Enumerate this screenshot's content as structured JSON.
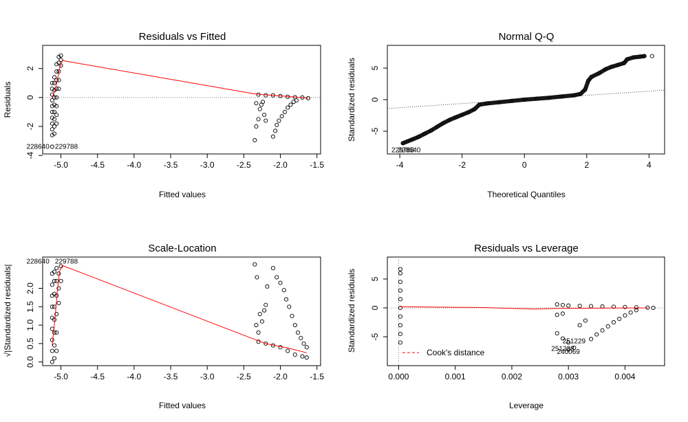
{
  "chart_data": [
    {
      "id": "rvf",
      "type": "scatter",
      "title": "Residuals vs Fitted",
      "xlabel": "Fitted values",
      "ylabel": "Residuals",
      "xlim": [
        -5.25,
        -1.45
      ],
      "ylim": [
        -3.9,
        3.6
      ],
      "xticks": [
        -5.0,
        -4.5,
        -4.0,
        -3.5,
        -3.0,
        -2.5,
        -2.0,
        -1.5
      ],
      "xtick_labels": [
        "-5.0",
        "-4.5",
        "-4.0",
        "-3.5",
        "-3.0",
        "-2.5",
        "-2.0",
        "-1.5"
      ],
      "yticks": [
        -4,
        -2,
        0,
        2
      ],
      "ytick_labels": [
        "-4",
        "-2",
        "0",
        "2"
      ],
      "hline": 0,
      "points": [
        [
          -5.12,
          -3.4
        ],
        [
          -5.12,
          -2.6
        ],
        [
          -5.12,
          -2.2
        ],
        [
          -5.12,
          -1.8
        ],
        [
          -5.12,
          -1.4
        ],
        [
          -5.12,
          -1.0
        ],
        [
          -5.12,
          -0.6
        ],
        [
          -5.12,
          -0.2
        ],
        [
          -5.12,
          0.2
        ],
        [
          -5.12,
          0.6
        ],
        [
          -5.12,
          1.0
        ],
        [
          -5.09,
          -2.5
        ],
        [
          -5.09,
          -2.0
        ],
        [
          -5.09,
          -1.5
        ],
        [
          -5.09,
          -1.0
        ],
        [
          -5.09,
          -0.5
        ],
        [
          -5.09,
          0.0
        ],
        [
          -5.09,
          0.5
        ],
        [
          -5.09,
          1.0
        ],
        [
          -5.09,
          1.4
        ],
        [
          -5.06,
          -1.8
        ],
        [
          -5.06,
          -1.2
        ],
        [
          -5.06,
          -0.6
        ],
        [
          -5.06,
          0.0
        ],
        [
          -5.06,
          0.6
        ],
        [
          -5.06,
          1.2
        ],
        [
          -5.06,
          1.8
        ],
        [
          -5.06,
          2.3
        ],
        [
          -5.03,
          0.6
        ],
        [
          -5.03,
          1.2
        ],
        [
          -5.03,
          1.8
        ],
        [
          -5.03,
          2.4
        ],
        [
          -5.03,
          2.8
        ],
        [
          -5.0,
          2.2
        ],
        [
          -5.0,
          2.6
        ],
        [
          -5.0,
          2.9
        ],
        [
          -2.35,
          -2.95
        ],
        [
          -2.33,
          -2.0
        ],
        [
          -2.33,
          -0.4
        ],
        [
          -2.3,
          -1.5
        ],
        [
          -2.28,
          -0.8
        ],
        [
          -2.26,
          -0.5
        ],
        [
          -2.24,
          -0.3
        ],
        [
          -2.22,
          -1.2
        ],
        [
          -2.2,
          -1.6
        ],
        [
          -2.3,
          0.2
        ],
        [
          -2.2,
          0.15
        ],
        [
          -2.1,
          -2.7
        ],
        [
          -2.07,
          -2.3
        ],
        [
          -2.05,
          -1.9
        ],
        [
          -2.02,
          -1.6
        ],
        [
          -1.98,
          -1.3
        ],
        [
          -1.94,
          -1.0
        ],
        [
          -1.9,
          -0.7
        ],
        [
          -1.86,
          -0.5
        ],
        [
          -1.82,
          -0.3
        ],
        [
          -1.78,
          -0.2
        ],
        [
          -2.1,
          0.15
        ],
        [
          -2.0,
          0.1
        ],
        [
          -1.9,
          0.05
        ],
        [
          -1.8,
          0.02
        ],
        [
          -1.7,
          0.0
        ],
        [
          -1.62,
          -0.05
        ]
      ],
      "smooth": [
        [
          -5.12,
          0.0
        ],
        [
          -5.08,
          0.5
        ],
        [
          -5.05,
          1.2
        ],
        [
          -5.02,
          2.0
        ],
        [
          -4.98,
          2.55
        ],
        [
          -2.35,
          0.25
        ],
        [
          -2.1,
          0.15
        ],
        [
          -1.9,
          0.08
        ],
        [
          -1.62,
          -0.05
        ]
      ],
      "annotations": [
        {
          "text": "228640",
          "x": -5.12,
          "y": -3.4,
          "pos": "left"
        },
        {
          "text": "229788",
          "x": -5.12,
          "y": -3.4,
          "pos": "right"
        }
      ]
    },
    {
      "id": "qq",
      "type": "scatter",
      "title": "Normal Q-Q",
      "xlabel": "Theoretical Quantiles",
      "ylabel": "Standardized residuals",
      "xlim": [
        -4.4,
        4.5
      ],
      "ylim": [
        -8.6,
        8.6
      ],
      "xticks": [
        -4,
        -2,
        0,
        2,
        4
      ],
      "xtick_labels": [
        "-4",
        "-2",
        "0",
        "2",
        "4"
      ],
      "yticks": [
        -5,
        0,
        5
      ],
      "ytick_labels": [
        "-5",
        "0",
        "5"
      ],
      "refline": [
        [
          -4.4,
          -1.4
        ],
        [
          4.5,
          1.5
        ]
      ],
      "curve_points": [
        [
          -3.9,
          -6.9
        ],
        [
          -3.75,
          -6.6
        ],
        [
          -3.6,
          -6.3
        ],
        [
          -3.4,
          -5.9
        ],
        [
          -3.2,
          -5.4
        ],
        [
          -3.0,
          -4.9
        ],
        [
          -2.8,
          -4.3
        ],
        [
          -2.6,
          -3.7
        ],
        [
          -2.4,
          -3.2
        ],
        [
          -2.2,
          -2.8
        ],
        [
          -2.0,
          -2.4
        ],
        [
          -1.8,
          -2.0
        ],
        [
          -1.6,
          -1.5
        ],
        [
          -1.45,
          -0.8
        ],
        [
          -1.2,
          -0.6
        ],
        [
          -0.8,
          -0.4
        ],
        [
          -0.4,
          -0.2
        ],
        [
          0.0,
          0.0
        ],
        [
          0.4,
          0.15
        ],
        [
          0.8,
          0.3
        ],
        [
          1.2,
          0.5
        ],
        [
          1.6,
          0.7
        ],
        [
          1.8,
          0.9
        ],
        [
          1.95,
          1.6
        ],
        [
          2.05,
          3.0
        ],
        [
          2.15,
          3.6
        ],
        [
          2.4,
          4.2
        ],
        [
          2.6,
          4.8
        ],
        [
          2.8,
          5.2
        ],
        [
          3.0,
          5.5
        ],
        [
          3.2,
          5.8
        ],
        [
          3.3,
          6.4
        ],
        [
          3.5,
          6.7
        ],
        [
          3.7,
          6.8
        ],
        [
          3.85,
          6.9
        ]
      ],
      "extra_points": [
        [
          4.1,
          6.9
        ]
      ],
      "annotations": [
        {
          "text": "229788",
          "x": -3.9,
          "y": -8.0
        },
        {
          "text": "228640",
          "x": -3.7,
          "y": -8.0
        }
      ]
    },
    {
      "id": "sl",
      "type": "scatter",
      "title": "Scale-Location",
      "xlabel": "Fitted values",
      "ylabel": "√|Standardized residuals|",
      "xlim": [
        -5.25,
        -1.45
      ],
      "ylim": [
        -0.1,
        2.85
      ],
      "xticks": [
        -5.0,
        -4.5,
        -4.0,
        -3.5,
        -3.0,
        -2.5,
        -2.0,
        -1.5
      ],
      "xtick_labels": [
        "-5.0",
        "-4.5",
        "-4.0",
        "-3.5",
        "-3.0",
        "-2.5",
        "-2.0",
        "-1.5"
      ],
      "yticks": [
        0.0,
        0.5,
        1.0,
        1.5,
        2.0
      ],
      "ytick_labels": [
        "0.0",
        "0.5",
        "1.0",
        "1.5",
        "2.0"
      ],
      "points": [
        [
          -5.12,
          0.0
        ],
        [
          -5.12,
          0.3
        ],
        [
          -5.12,
          0.6
        ],
        [
          -5.12,
          0.9
        ],
        [
          -5.12,
          1.2
        ],
        [
          -5.12,
          1.5
        ],
        [
          -5.12,
          1.8
        ],
        [
          -5.12,
          2.1
        ],
        [
          -5.12,
          2.4
        ],
        [
          -5.09,
          0.1
        ],
        [
          -5.09,
          0.45
        ],
        [
          -5.09,
          0.8
        ],
        [
          -5.09,
          1.15
        ],
        [
          -5.09,
          1.5
        ],
        [
          -5.09,
          1.85
        ],
        [
          -5.09,
          2.2
        ],
        [
          -5.09,
          2.45
        ],
        [
          -5.06,
          0.3
        ],
        [
          -5.06,
          0.8
        ],
        [
          -5.06,
          1.3
        ],
        [
          -5.06,
          1.8
        ],
        [
          -5.06,
          2.2
        ],
        [
          -5.06,
          2.55
        ],
        [
          -5.03,
          1.6
        ],
        [
          -5.03,
          2.0
        ],
        [
          -5.03,
          2.4
        ],
        [
          -5.0,
          2.2
        ],
        [
          -5.0,
          2.6
        ],
        [
          -2.35,
          2.65
        ],
        [
          -2.32,
          2.3
        ],
        [
          -2.33,
          1.0
        ],
        [
          -2.3,
          0.8
        ],
        [
          -2.28,
          1.3
        ],
        [
          -2.25,
          1.1
        ],
        [
          -2.22,
          1.4
        ],
        [
          -2.2,
          1.55
        ],
        [
          -2.18,
          2.05
        ],
        [
          -2.1,
          2.55
        ],
        [
          -2.05,
          2.3
        ],
        [
          -2.0,
          2.15
        ],
        [
          -1.95,
          1.95
        ],
        [
          -1.92,
          1.7
        ],
        [
          -1.88,
          1.5
        ],
        [
          -1.84,
          1.25
        ],
        [
          -1.8,
          1.0
        ],
        [
          -1.76,
          0.8
        ],
        [
          -1.72,
          0.65
        ],
        [
          -1.68,
          0.5
        ],
        [
          -1.64,
          0.4
        ],
        [
          -2.3,
          0.55
        ],
        [
          -2.2,
          0.5
        ],
        [
          -2.1,
          0.45
        ],
        [
          -2.0,
          0.4
        ],
        [
          -1.9,
          0.3
        ],
        [
          -1.8,
          0.2
        ],
        [
          -1.7,
          0.15
        ],
        [
          -1.64,
          0.12
        ]
      ],
      "smooth": [
        [
          -5.12,
          0.45
        ],
        [
          -5.09,
          1.0
        ],
        [
          -5.05,
          1.9
        ],
        [
          -5.02,
          2.45
        ],
        [
          -4.98,
          2.62
        ],
        [
          -2.4,
          0.65
        ],
        [
          -2.2,
          0.5
        ],
        [
          -1.9,
          0.38
        ],
        [
          -1.64,
          0.25
        ]
      ],
      "annotations": [
        {
          "text": "228640",
          "x": -5.12,
          "y": 2.73,
          "pos": "left"
        },
        {
          "text": "229788",
          "x": -5.12,
          "y": 2.73,
          "pos": "right"
        }
      ]
    },
    {
      "id": "rvl",
      "type": "scatter",
      "title": "Residuals vs Leverage",
      "xlabel": "Leverage",
      "ylabel": "Standardized residuals",
      "xlim": [
        -0.0002,
        0.0047
      ],
      "ylim": [
        -10,
        8.8
      ],
      "xticks": [
        0.0,
        0.001,
        0.002,
        0.003,
        0.004
      ],
      "xtick_labels": [
        "0.000",
        "0.001",
        "0.002",
        "0.003",
        "0.004"
      ],
      "yticks": [
        -5,
        0,
        5
      ],
      "ytick_labels": [
        "-5",
        "0",
        "5"
      ],
      "hline": 0,
      "vline": 0,
      "points": [
        [
          3e-05,
          -6.0
        ],
        [
          3e-05,
          -4.5
        ],
        [
          3e-05,
          -3.0
        ],
        [
          3e-05,
          -1.5
        ],
        [
          3e-05,
          0.0
        ],
        [
          3e-05,
          1.5
        ],
        [
          3e-05,
          3.0
        ],
        [
          3e-05,
          4.5
        ],
        [
          3e-05,
          6.0
        ],
        [
          3e-05,
          6.7
        ],
        [
          0.0028,
          0.6
        ],
        [
          0.0029,
          0.5
        ],
        [
          0.003,
          0.4
        ],
        [
          0.0032,
          0.35
        ],
        [
          0.0034,
          0.3
        ],
        [
          0.0036,
          0.25
        ],
        [
          0.0038,
          0.2
        ],
        [
          0.004,
          0.15
        ],
        [
          0.0042,
          0.1
        ],
        [
          0.0044,
          0.05
        ],
        [
          0.0045,
          0.0
        ],
        [
          0.0028,
          -1.2
        ],
        [
          0.0029,
          -1.0
        ],
        [
          0.0028,
          -4.4
        ],
        [
          0.0029,
          -5.3
        ],
        [
          0.003,
          -6.0
        ],
        [
          0.003,
          -7.2
        ],
        [
          0.0031,
          -6.9
        ],
        [
          0.0032,
          -3.0
        ],
        [
          0.0033,
          -2.2
        ],
        [
          0.0034,
          -5.4
        ],
        [
          0.0035,
          -4.6
        ],
        [
          0.0036,
          -3.9
        ],
        [
          0.0037,
          -3.2
        ],
        [
          0.0038,
          -2.5
        ],
        [
          0.0039,
          -1.9
        ],
        [
          0.004,
          -1.3
        ],
        [
          0.0041,
          -0.8
        ],
        [
          0.0042,
          -0.4
        ]
      ],
      "smooth": [
        [
          3e-05,
          0.2
        ],
        [
          0.001,
          0.1
        ],
        [
          0.0015,
          0.05
        ],
        [
          0.0024,
          -0.2
        ],
        [
          0.0028,
          -0.1
        ],
        [
          0.0035,
          -0.05
        ],
        [
          0.0044,
          0.0
        ]
      ],
      "legend": {
        "label": "Cook's distance",
        "placement": "bottom-left"
      },
      "annotations": [
        {
          "text": "251229",
          "x": 0.0031,
          "y": -5.8
        },
        {
          "text": "251228",
          "x": 0.0029,
          "y": -7.1
        },
        {
          "text": "240069",
          "x": 0.003,
          "y": -7.6
        }
      ]
    }
  ],
  "colors": {
    "points": "#000000",
    "smooth": "#ff0000",
    "refline": "#7f7f7f",
    "cook": "#ff0000"
  }
}
